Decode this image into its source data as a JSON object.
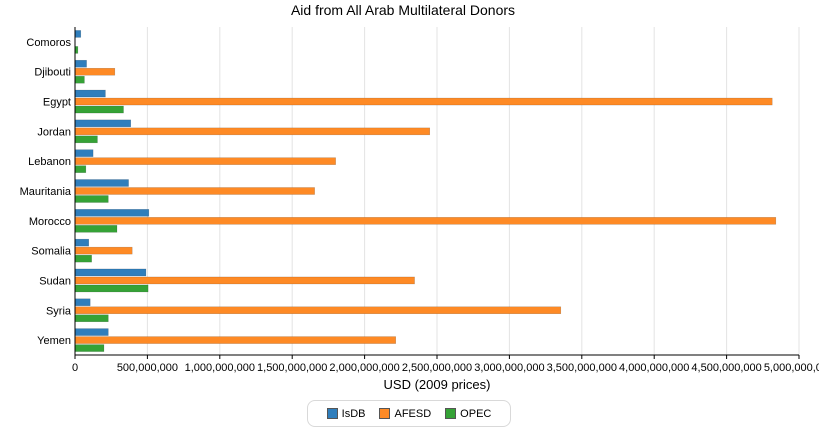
{
  "chart_data": {
    "type": "bar",
    "orientation": "horizontal",
    "title": "Aid from All Arab Multilateral Donors",
    "xlabel": "USD (2009 prices)",
    "ylabel": "",
    "categories": [
      "Comoros",
      "Djibouti",
      "Egypt",
      "Jordan",
      "Lebanon",
      "Mauritania",
      "Morocco",
      "Somalia",
      "Sudan",
      "Syria",
      "Yemen"
    ],
    "series": [
      {
        "name": "IsDB",
        "color": "#2f7ebc",
        "values": [
          40000000,
          80000000,
          210000000,
          385000000,
          125000000,
          370000000,
          510000000,
          95000000,
          490000000,
          105000000,
          230000000
        ]
      },
      {
        "name": "AFESD",
        "color": "#fe8a25",
        "values": [
          0,
          275000000,
          4815000000,
          2450000000,
          1800000000,
          1655000000,
          4840000000,
          395000000,
          2345000000,
          3355000000,
          2215000000
        ]
      },
      {
        "name": "OPEC",
        "color": "#35a236",
        "values": [
          20000000,
          65000000,
          335000000,
          155000000,
          75000000,
          230000000,
          290000000,
          115000000,
          505000000,
          230000000,
          200000000
        ]
      }
    ],
    "xlim": [
      0,
      5000000000
    ],
    "xticks": [
      0,
      500000000,
      1000000000,
      1500000000,
      2000000000,
      2500000000,
      3000000000,
      3500000000,
      4000000000,
      4500000000,
      5000000000
    ],
    "xtick_labels": [
      "0",
      "500,000,000",
      "1,000,000,000",
      "1,500,000,000",
      "2,000,000,000",
      "2,500,000,000",
      "3,000,000,000",
      "3,500,000,000",
      "4,000,000,000",
      "4,500,000,000",
      "5,000,000,000"
    ],
    "grid": true,
    "legend_position": "bottom-center"
  }
}
